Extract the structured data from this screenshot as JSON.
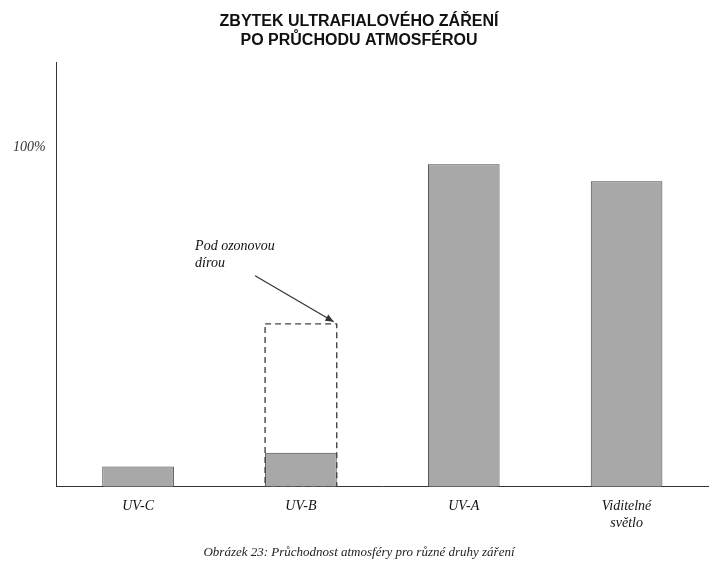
{
  "chart_data": {
    "type": "bar",
    "title": "ZBYTEK ULTRAFIALOVÉHO ZÁŘENÍ\nPO PRŮCHODU ATMOSFÉROU",
    "caption": "Obrázek 23: Průchodnost atmosféry pro různé druhy záření",
    "categories": [
      "UV-C",
      "UV-B",
      "UV-A",
      "Viditelné\nsvětlo"
    ],
    "series": [
      {
        "values": [
          0.06,
          0.1,
          0.95,
          0.9
        ],
        "color": "#a8a8a8"
      },
      {
        "values": [
          null,
          0.48,
          null,
          null
        ],
        "line_style": "dashed"
      }
    ],
    "annotations": [
      {
        "text": "Pod ozonovou\ndírou"
      }
    ],
    "ylim": [
      0,
      1.25
    ],
    "yticks": [
      {
        "value": 1.0,
        "label": "100%"
      }
    ],
    "grid": false
  }
}
